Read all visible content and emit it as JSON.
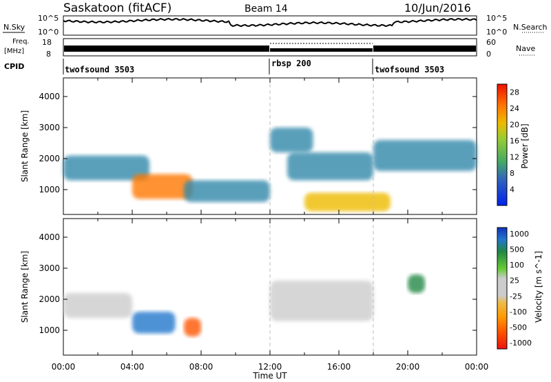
{
  "header": {
    "radar": "Saskatoon (fitACF)",
    "beam": "Beam 14",
    "date": "10/Jun/2016"
  },
  "noise_panel": {
    "left_label": "N.Sky",
    "left_ticks": [
      "10^5",
      "10^0"
    ],
    "right_ticks": [
      "10^5",
      "10^0"
    ],
    "right_label": "N.Search"
  },
  "freq_panel": {
    "left_label_1": "Freq.",
    "left_label_2": "[MHz]",
    "left_ticks": [
      "18",
      "8"
    ],
    "right_ticks": [
      "60",
      "0"
    ],
    "right_label": "Nave"
  },
  "cpid_panel": {
    "label": "CPID",
    "segments": [
      {
        "name": "twofsound 3503",
        "start_hour": 0
      },
      {
        "name": "rbsp 200",
        "start_hour": 12
      },
      {
        "name": "twofsound 3503",
        "start_hour": 18
      }
    ]
  },
  "colors": {
    "power_scale": [
      "#0022ee",
      "#2255bb",
      "#3388aa",
      "#44aa66",
      "#99cc33",
      "#eebb00",
      "#ff7700",
      "#ee2200"
    ],
    "velocity_scale": [
      "#ee1111",
      "#ff5500",
      "#ff9900",
      "#eebb33",
      "#cccccc",
      "#cccccc",
      "#66cc33",
      "#228844",
      "#2277cc",
      "#1133bb"
    ]
  },
  "x_axis": {
    "label": "Time UT",
    "ticks": [
      "00:00",
      "04:00",
      "08:00",
      "12:00",
      "16:00",
      "20:00",
      "00:00"
    ]
  },
  "chart_data": [
    {
      "type": "heatmap",
      "name": "power",
      "ylabel": "Slant Range [km]",
      "yticks": [
        1000,
        2000,
        3000,
        4000
      ],
      "ylim": [
        200,
        4600
      ],
      "xlim_hours": [
        0,
        24
      ],
      "colorbar": {
        "label": "Power [dB]",
        "ticks": [
          "4",
          "8",
          "12",
          "16",
          "20",
          "24",
          "28"
        ],
        "range": [
          0,
          30
        ]
      },
      "features": [
        {
          "hours": [
            0,
            5
          ],
          "range_km": [
            1300,
            2100
          ],
          "level_db": 10
        },
        {
          "hours": [
            4,
            7.5
          ],
          "range_km": [
            700,
            1500
          ],
          "level_db": 24
        },
        {
          "hours": [
            7,
            12
          ],
          "range_km": [
            600,
            1300
          ],
          "level_db": 8
        },
        {
          "hours": [
            12,
            14.5
          ],
          "range_km": [
            2200,
            3000
          ],
          "level_db": 10
        },
        {
          "hours": [
            13,
            18
          ],
          "range_km": [
            1300,
            2200
          ],
          "level_db": 10
        },
        {
          "hours": [
            14,
            19
          ],
          "range_km": [
            300,
            900
          ],
          "level_db": 22
        },
        {
          "hours": [
            18,
            24
          ],
          "range_km": [
            1600,
            2600
          ],
          "level_db": 10
        }
      ]
    },
    {
      "type": "heatmap",
      "name": "velocity",
      "ylabel": "Slant Range [km]",
      "yticks": [
        1000,
        2000,
        3000,
        4000
      ],
      "ylim": [
        200,
        4600
      ],
      "xlim_hours": [
        0,
        24
      ],
      "colorbar": {
        "label": "Velocity [m s^-1]",
        "ticks": [
          "1000",
          "500",
          "100",
          "25",
          "-25",
          "-100",
          "-500",
          "-1000"
        ]
      },
      "features": [
        {
          "hours": [
            0,
            4
          ],
          "range_km": [
            1400,
            2200
          ],
          "velocity": 0
        },
        {
          "hours": [
            4,
            6.5
          ],
          "range_km": [
            900,
            1600
          ],
          "velocity": 400
        },
        {
          "hours": [
            7,
            8
          ],
          "range_km": [
            800,
            1400
          ],
          "velocity": -400
        },
        {
          "hours": [
            12,
            18
          ],
          "range_km": [
            1300,
            2600
          ],
          "velocity": 0
        },
        {
          "hours": [
            20,
            21
          ],
          "range_km": [
            2200,
            2800
          ],
          "velocity": 200
        }
      ]
    }
  ]
}
